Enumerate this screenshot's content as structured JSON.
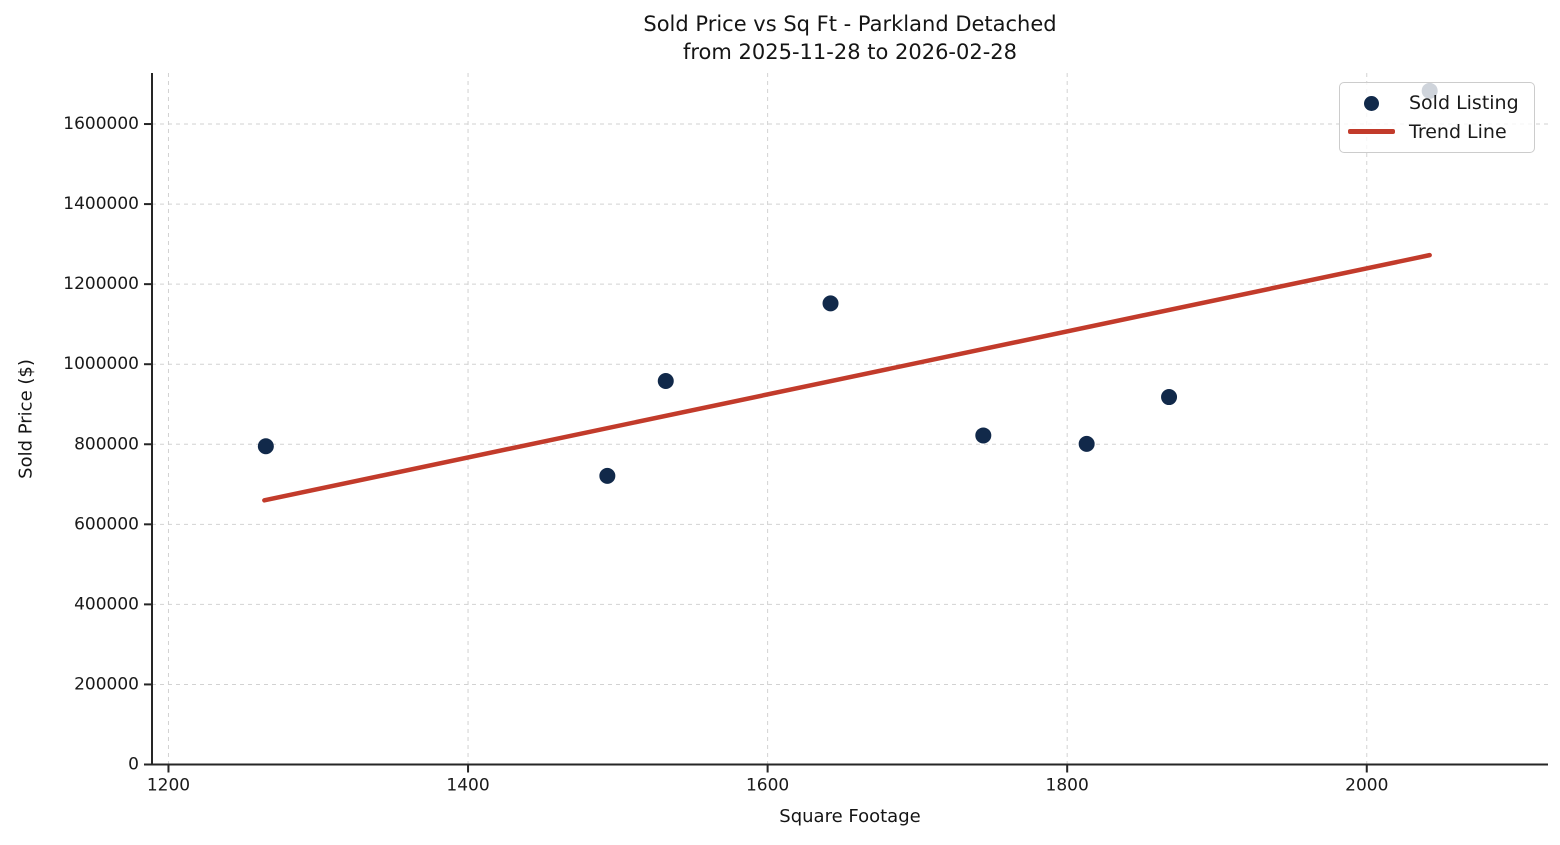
{
  "title": {
    "line1": "Sold Price vs Sq Ft - Parkland Detached",
    "line2": "from 2025-11-28 to 2026-02-28"
  },
  "axes": {
    "xlabel": "Square Footage",
    "ylabel": "Sold Price ($)"
  },
  "legend": {
    "position": "upper-right",
    "items": [
      {
        "label": "Sold Listing",
        "marker": "dot-icon"
      },
      {
        "label": "Trend Line",
        "marker": "line-icon"
      }
    ]
  },
  "colors": {
    "scatter_point": "#11294a",
    "trend_line": "#c23b2b",
    "gridline": "#d2d2d2",
    "spine": "#262626",
    "tick_text": "#1a1a1a"
  },
  "chart_data": {
    "type": "scatter",
    "title": "Sold Price vs Sq Ft - Parkland Detached from 2025-11-28 to 2026-02-28",
    "xlabel": "Square Footage",
    "ylabel": "Sold Price ($)",
    "xlim": [
      1189,
      2121
    ],
    "ylim": [
      0,
      1727500
    ],
    "x_ticks": [
      1200,
      1400,
      1600,
      1800,
      2000
    ],
    "y_ticks": [
      0,
      200000,
      400000,
      600000,
      800000,
      1000000,
      1200000,
      1400000,
      1600000
    ],
    "grid": true,
    "grid_style": "dashed",
    "legend_position": "upper right",
    "series": [
      {
        "name": "Sold Listing",
        "type": "scatter",
        "color": "#11294a",
        "marker_radius": 8,
        "points": [
          [
            1265,
            795000
          ],
          [
            1493,
            721000
          ],
          [
            1532,
            958000
          ],
          [
            1642,
            1152000
          ],
          [
            1744,
            822000
          ],
          [
            1813,
            801000
          ],
          [
            1868,
            918000
          ],
          [
            2042,
            1683000
          ]
        ]
      },
      {
        "name": "Trend Line",
        "type": "line",
        "color": "#c23b2b",
        "line_width": 4.5,
        "points": [
          [
            1264,
            660000
          ],
          [
            2042,
            1272500
          ]
        ]
      }
    ]
  }
}
